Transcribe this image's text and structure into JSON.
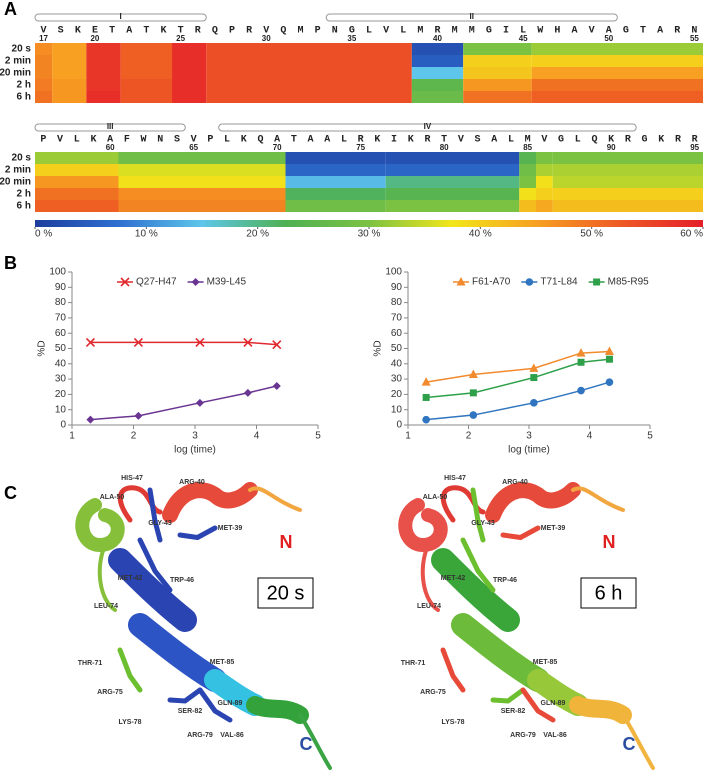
{
  "panel_labels": [
    "A",
    "B",
    "C"
  ],
  "colorbar": {
    "lim": [
      0,
      60
    ],
    "colors": [
      "#1d3d9e",
      "#2e6fd0",
      "#5ec6ea",
      "#4fb153",
      "#7cc242",
      "#f2e61a",
      "#f7a021",
      "#ee5a24",
      "#e41e2a"
    ],
    "ticks": [
      {
        "value": 0,
        "label": "0 %"
      },
      {
        "value": 10,
        "label": "10 %"
      },
      {
        "value": 20,
        "label": "20 %"
      },
      {
        "value": 30,
        "label": "30 %"
      },
      {
        "value": 40,
        "label": "40 %"
      },
      {
        "value": 50,
        "label": "50 %"
      },
      {
        "value": 60,
        "label": "60 %"
      }
    ]
  },
  "chart_data": [
    {
      "type": "heatmap",
      "categories": [
        "V",
        "S",
        "K",
        "E",
        "T",
        "A",
        "T",
        "K",
        "T",
        "R",
        "Q",
        "P",
        "R",
        "V",
        "Q",
        "M",
        "P",
        "N",
        "G",
        "L",
        "V",
        "L",
        "M",
        "R",
        "M",
        "M",
        "G",
        "I",
        "L",
        "W",
        "H",
        "A",
        "V",
        "A",
        "G",
        "T",
        "A",
        "R",
        "N"
      ],
      "xlim": [
        16.5,
        55.5
      ],
      "xticks": [
        17,
        20,
        25,
        30,
        35,
        40,
        45,
        50,
        55
      ],
      "rows": [
        "20 s",
        "2 min",
        "20 min",
        "2 h",
        "6 h"
      ],
      "helices": [
        {
          "label": "I",
          "start": 17,
          "end": 26
        },
        {
          "label": "II",
          "start": 34,
          "end": 50
        }
      ],
      "segments": [
        {
          "start": 17,
          "end": 17,
          "values": [
            47,
            48,
            48,
            49,
            50
          ]
        },
        {
          "start": 18,
          "end": 19,
          "values": [
            45,
            45,
            45,
            46,
            46
          ]
        },
        {
          "start": 20,
          "end": 21,
          "values": [
            57,
            57,
            57,
            57,
            58
          ]
        },
        {
          "start": 22,
          "end": 24,
          "values": [
            52,
            52,
            52,
            53,
            53
          ]
        },
        {
          "start": 25,
          "end": 26,
          "values": [
            58,
            58,
            58,
            58,
            58
          ]
        },
        {
          "start": 27,
          "end": 38,
          "values": [
            54,
            54,
            54,
            54,
            54
          ]
        },
        {
          "start": 39,
          "end": 41,
          "values": [
            3,
            5,
            15,
            25,
            27
          ]
        },
        {
          "start": 42,
          "end": 45,
          "values": [
            30,
            40,
            41,
            46,
            50
          ]
        },
        {
          "start": 46,
          "end": 55,
          "values": [
            32,
            40,
            45,
            50,
            52
          ]
        }
      ]
    },
    {
      "type": "heatmap",
      "categories": [
        "P",
        "V",
        "L",
        "K",
        "A",
        "F",
        "W",
        "N",
        "S",
        "V",
        "P",
        "L",
        "K",
        "Q",
        "A",
        "T",
        "A",
        "A",
        "L",
        "R",
        "K",
        "I",
        "K",
        "R",
        "T",
        "V",
        "S",
        "A",
        "L",
        "M",
        "V",
        "G",
        "L",
        "Q",
        "K",
        "R",
        "G",
        "K",
        "R",
        "R"
      ],
      "xlim": [
        55.5,
        95.5
      ],
      "xticks": [
        60,
        65,
        70,
        75,
        80,
        85,
        90,
        95
      ],
      "rows": [
        "20 s",
        "2 min",
        "20 min",
        "2 h",
        "6 h"
      ],
      "helices": [
        {
          "label": "III",
          "start": 56,
          "end": 64
        },
        {
          "label": "IV",
          "start": 67,
          "end": 91
        }
      ],
      "segments": [
        {
          "start": 56,
          "end": 60,
          "values": [
            32,
            40,
            46,
            50,
            52
          ]
        },
        {
          "start": 61,
          "end": 70,
          "values": [
            28,
            36,
            38,
            47,
            48
          ]
        },
        {
          "start": 71,
          "end": 76,
          "values": [
            3,
            6,
            14,
            22,
            28
          ]
        },
        {
          "start": 77,
          "end": 84,
          "values": [
            3,
            6,
            20,
            24,
            30
          ]
        },
        {
          "start": 85,
          "end": 85,
          "values": [
            24,
            28,
            30,
            38,
            42
          ]
        },
        {
          "start": 86,
          "end": 86,
          "values": [
            30,
            33,
            38,
            40,
            44
          ]
        },
        {
          "start": 87,
          "end": 95,
          "values": [
            30,
            33,
            34,
            40,
            42
          ]
        }
      ]
    },
    {
      "type": "line",
      "x": [
        1.3,
        2.08,
        3.08,
        3.86,
        4.33
      ],
      "xlim": [
        1,
        5
      ],
      "xticks": [
        1,
        2,
        3,
        4,
        5
      ],
      "ylim": [
        0,
        100
      ],
      "yticks": [
        0,
        10,
        20,
        30,
        40,
        50,
        60,
        70,
        80,
        90,
        100
      ],
      "x_label": "log (time)",
      "y_label": "%D",
      "series": [
        {
          "name": "Q27-H47",
          "color": "#e0282e",
          "marker": "x",
          "values": [
            54,
            54,
            54,
            54,
            52.5
          ]
        },
        {
          "name": "M39-L45",
          "color": "#6a3592",
          "marker": "diamond",
          "values": [
            3.5,
            6,
            14.5,
            21,
            25.5
          ]
        }
      ]
    },
    {
      "type": "line",
      "x": [
        1.3,
        2.08,
        3.08,
        3.86,
        4.33
      ],
      "xlim": [
        1,
        5
      ],
      "xticks": [
        1,
        2,
        3,
        4,
        5
      ],
      "ylim": [
        0,
        100
      ],
      "yticks": [
        0,
        10,
        20,
        30,
        40,
        50,
        60,
        70,
        80,
        90,
        100
      ],
      "x_label": "log (time)",
      "y_label": "%D",
      "series": [
        {
          "name": "F61-A70",
          "color": "#f28a2e",
          "marker": "triangle",
          "values": [
            28,
            33,
            37,
            47,
            48
          ]
        },
        {
          "name": "T71-L84",
          "color": "#2f75c0",
          "marker": "circle",
          "values": [
            3.5,
            6.5,
            14.5,
            22.5,
            28
          ]
        },
        {
          "name": "M85-R95",
          "color": "#2ea04a",
          "marker": "square",
          "values": [
            18,
            21,
            31,
            41,
            43
          ]
        }
      ]
    }
  ],
  "structures": [
    {
      "time_label": "20 s",
      "n_label": "N",
      "c_label": "C",
      "labels": [
        "HIS-47",
        "ARG-40",
        "ALA-50",
        "GLY-43",
        "MET-39",
        "MET-42",
        "TRP-46",
        "LEU-74",
        "THR-71",
        "MET-85",
        "ARG-75",
        "SER-82",
        "GLN-89",
        "LYS-78",
        "ARG-79",
        "VAL-86"
      ]
    },
    {
      "time_label": "6 h",
      "n_label": "N",
      "c_label": "C",
      "labels": [
        "HIS-47",
        "ARG-40",
        "ALA-50",
        "GLY-43",
        "MET-39",
        "MET-42",
        "TRP-46",
        "LEU-74",
        "THR-71",
        "MET-85",
        "ARG-75",
        "SER-82",
        "GLN-89",
        "LYS-78",
        "ARG-79",
        "VAL-86"
      ]
    }
  ]
}
